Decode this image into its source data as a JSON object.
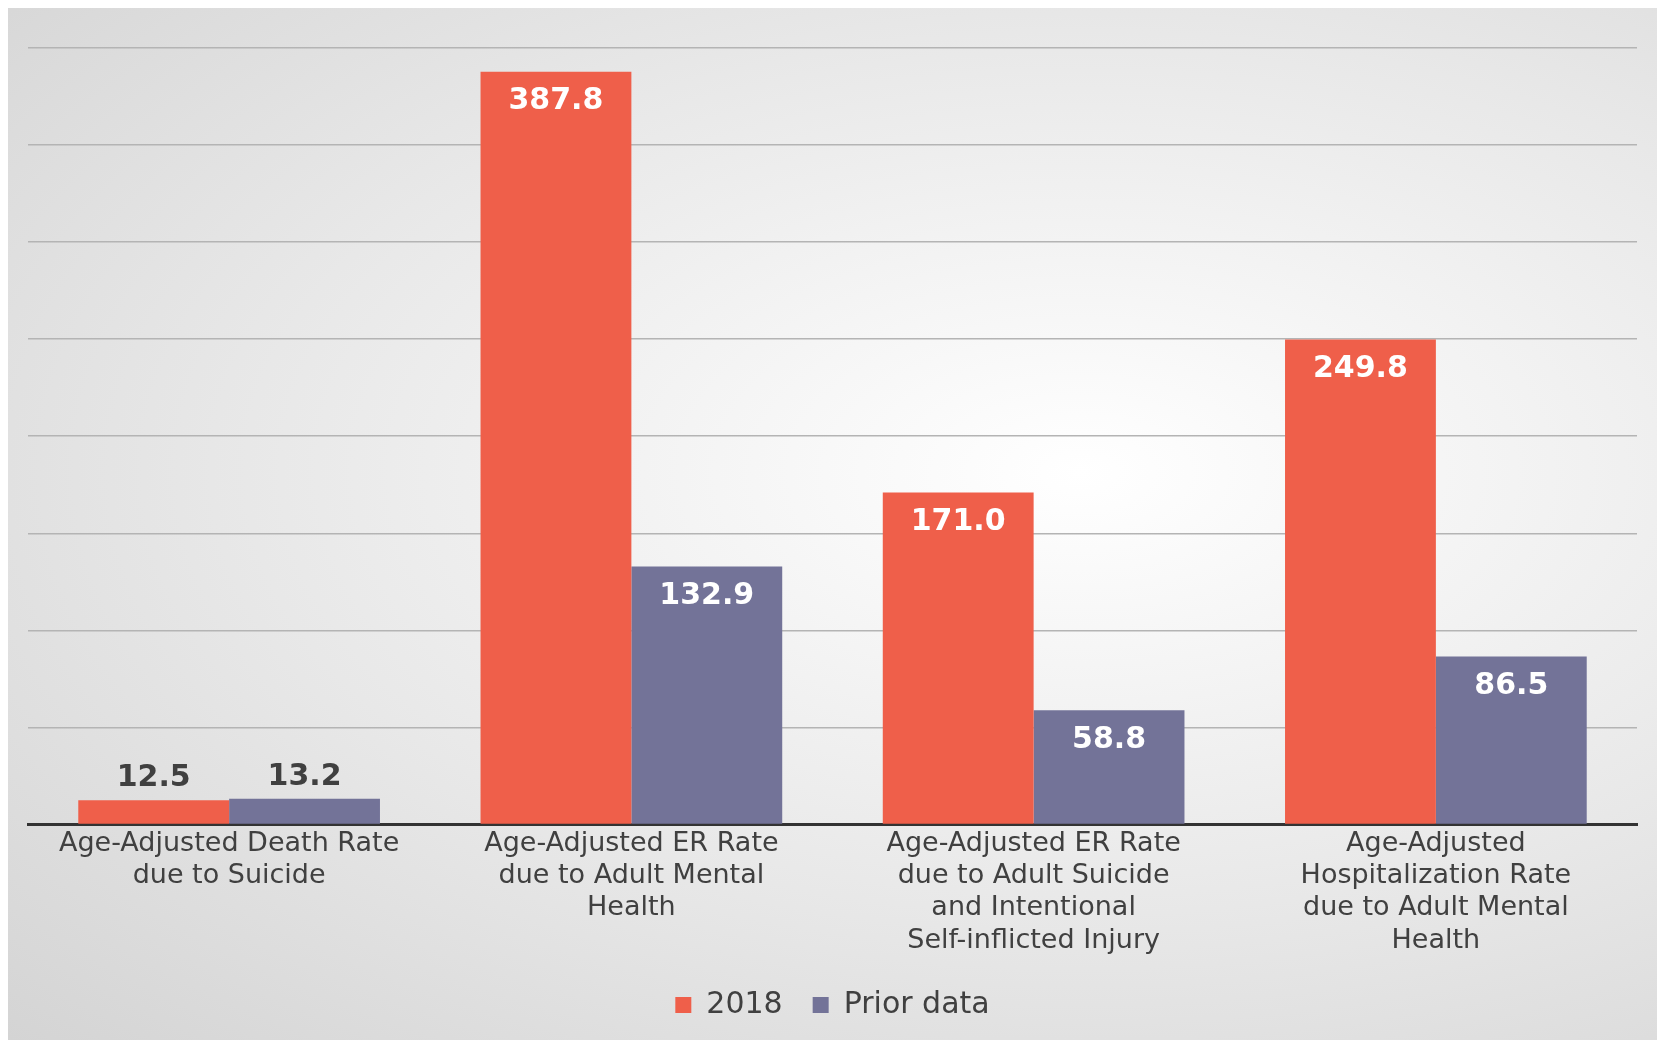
{
  "chart_data": {
    "type": "bar",
    "categories": [
      "Age-Adjusted Death Rate due to Suicide",
      "Age-Adjusted ER Rate due to Adult Mental Health",
      "Age-Adjusted ER Rate due to Adult Suicide and Intentional Self-inflicted Injury",
      "Age-Adjusted Hospitalization Rate due to Adult Mental Health"
    ],
    "series": [
      {
        "name": "2018",
        "color": "#ef5f4a",
        "values": [
          12.5,
          387.8,
          171.0,
          249.8
        ],
        "value_labels": [
          "12.5",
          "387.8",
          "171.0",
          "249.8"
        ]
      },
      {
        "name": "Prior data",
        "color": "#737398",
        "values": [
          13.2,
          132.9,
          58.8,
          86.5
        ],
        "value_labels": [
          "13.2",
          "132.9",
          "58.8",
          "86.5"
        ]
      }
    ],
    "tick_labels": "x",
    "grid": "y",
    "legend": "bottom"
  }
}
